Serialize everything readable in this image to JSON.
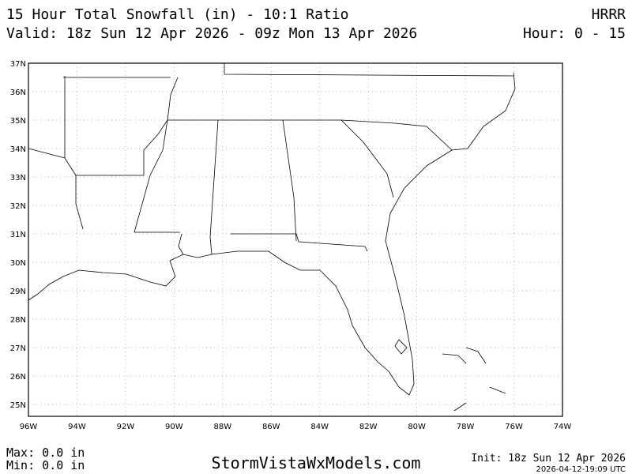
{
  "header": {
    "title": "15 Hour Total Snowfall (in) - 10:1 Ratio",
    "model": "HRRR",
    "valid": "Valid: 18z Sun 12 Apr 2026 - 09z Mon 13 Apr 2026",
    "hour": "Hour: 0 - 15"
  },
  "map": {
    "lat_labels": [
      "37N",
      "36N",
      "35N",
      "34N",
      "33N",
      "32N",
      "31N",
      "30N",
      "29N",
      "28N",
      "27N",
      "26N",
      "25N"
    ],
    "lon_labels": [
      "96W",
      "94W",
      "92W",
      "90W",
      "88W",
      "86W",
      "84W",
      "82W",
      "80W",
      "78W",
      "76W",
      "74W"
    ]
  },
  "footer": {
    "max": "Max: 0.0 in",
    "min": "Min: 0.0 in",
    "site": "StormVistaWxModels.com",
    "init": "Init: 18z Sun 12 Apr 2026",
    "timestamp": "2026-04-12-19:09 UTC"
  }
}
